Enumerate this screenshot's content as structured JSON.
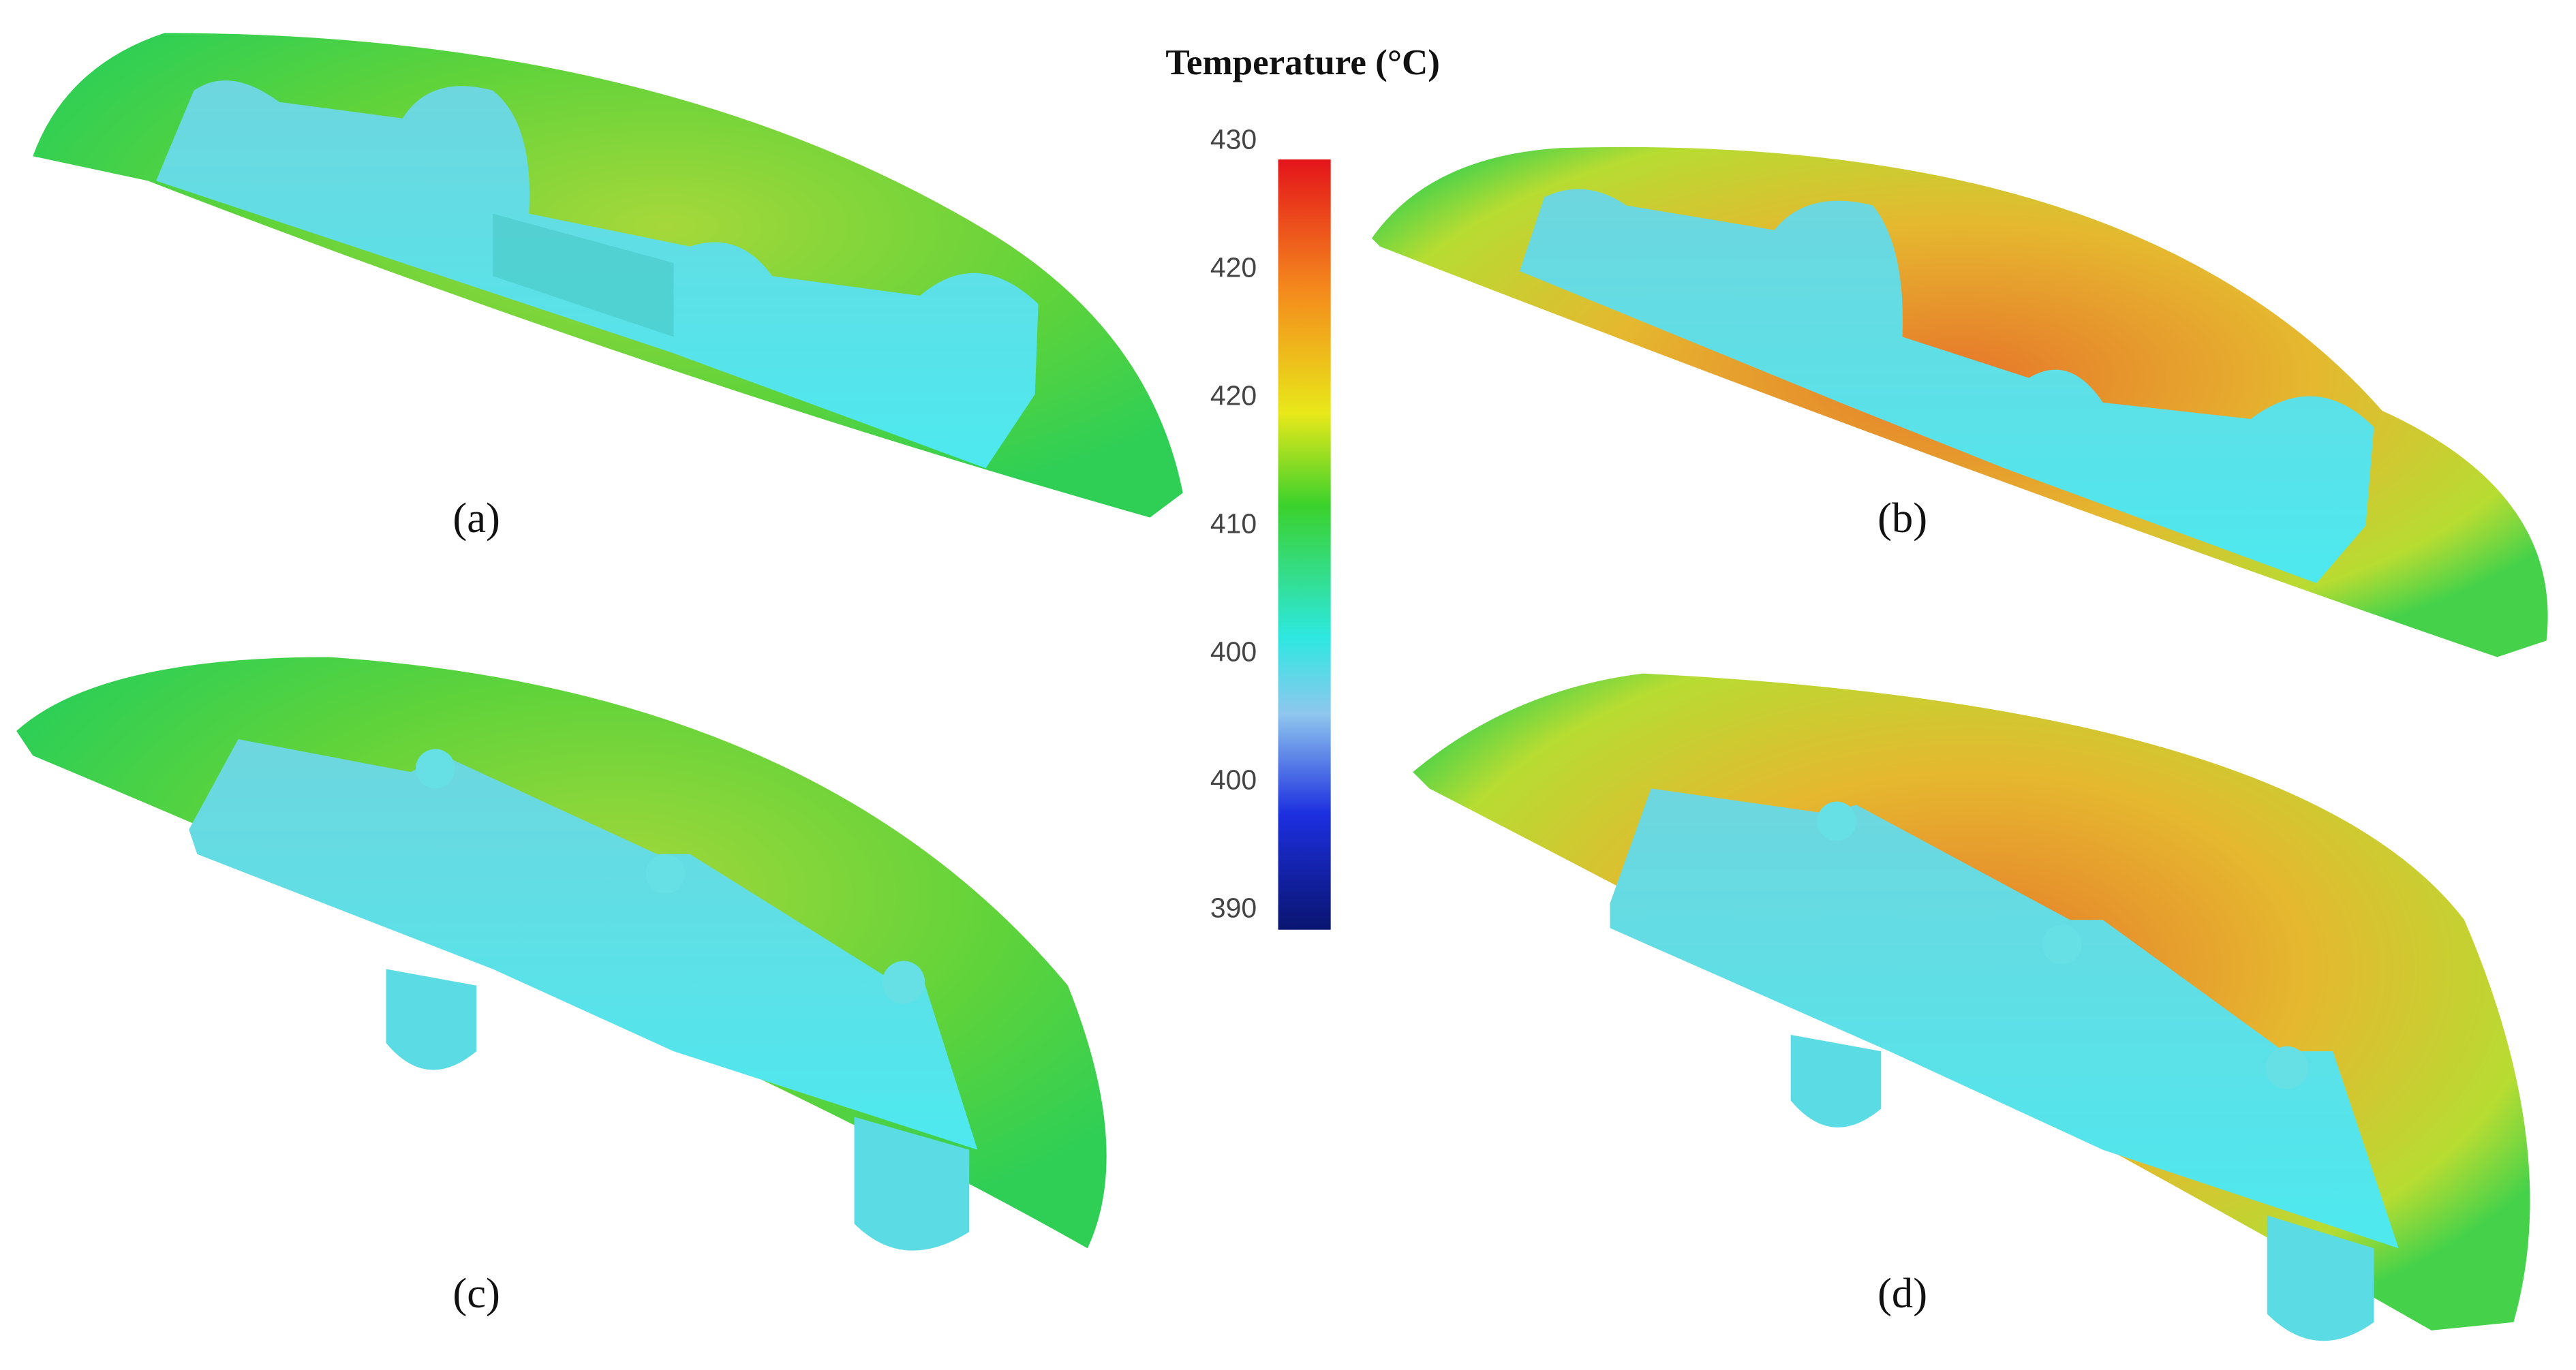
{
  "colorbar": {
    "title": "Temperature (°C)",
    "ticks": [
      "430",
      "420",
      "420",
      "410",
      "400",
      "400",
      "390"
    ]
  },
  "panels": [
    {
      "label": "(a)"
    },
    {
      "label": "(b)"
    },
    {
      "label": "(c)"
    },
    {
      "label": "(d)"
    }
  ]
}
